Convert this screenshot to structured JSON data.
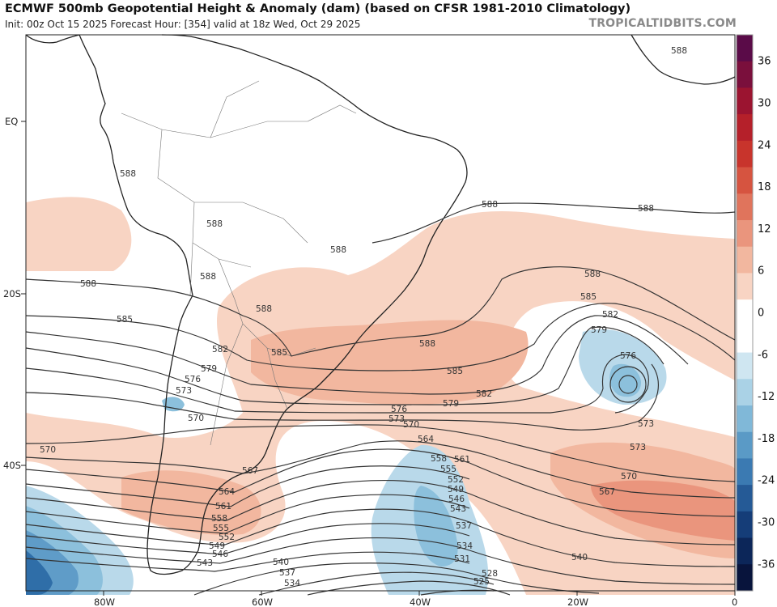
{
  "header": {
    "title": "ECMWF 500mb Geopotential Height & Anomaly (dam) (based on CFSR 1981-2010 Climatology)",
    "subtitle": "Init: 00z Oct 15 2025   Forecast Hour: [354]   valid at 18z Wed, Oct 29 2025",
    "brand": "TROPICALTIDBITS.COM"
  },
  "axes": {
    "lat_labels": [
      "EQ",
      "20S",
      "40S"
    ],
    "lon_labels": [
      "80W",
      "60W",
      "40W",
      "20W",
      "0"
    ]
  },
  "colorbar": {
    "labels": [
      "36",
      "30",
      "24",
      "18",
      "12",
      "6",
      "0",
      "-6",
      "-12",
      "-18",
      "-24",
      "-30",
      "-36"
    ],
    "colors": [
      "#5a0b48",
      "#7a0f3c",
      "#9b1430",
      "#b5202a",
      "#c8342c",
      "#d65440",
      "#e0745c",
      "#ea957d",
      "#f2b79f",
      "#f8d4c3",
      "#ffffff",
      "#ffffff",
      "#cfe6f1",
      "#aad2e6",
      "#80b8d8",
      "#5a9ac6",
      "#3b7ab2",
      "#255a96",
      "#153d78",
      "#0c2659",
      "#08143c"
    ]
  },
  "contour_labels": {
    "c588": "588",
    "c585": "585",
    "c582": "582",
    "c579": "579",
    "c576": "576",
    "c573": "573",
    "c570": "570",
    "c567": "567",
    "c564": "564",
    "c561": "561",
    "c558": "558",
    "c555": "555",
    "c552": "552",
    "c549": "549",
    "c546": "546",
    "c543": "543",
    "c540": "540",
    "c537": "537",
    "c534": "534",
    "c531": "531",
    "c528": "528",
    "c525": "525"
  },
  "map_colors": {
    "warm_light": "#f8d4c3",
    "warm_mid": "#f2b79f",
    "warm_strong": "#ea957d",
    "cold_light": "#b9d9ea",
    "cold_mid": "#8cc0dc",
    "cold_strong": "#5f9cc8",
    "cold_deep": "#2f6ea8",
    "contour": "#333333",
    "coast": "#222222"
  }
}
